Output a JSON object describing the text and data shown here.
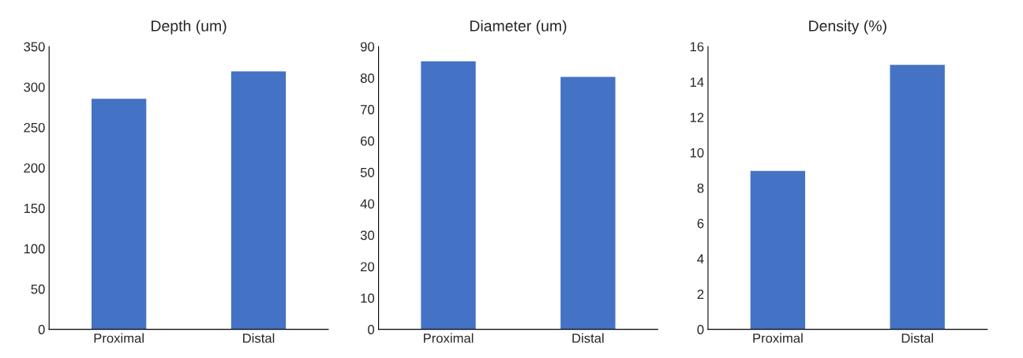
{
  "chart_data": [
    {
      "type": "bar",
      "title": "Depth (um)",
      "categories": [
        "Proximal",
        "Distal"
      ],
      "values": [
        286,
        320
      ],
      "color": "#4472c4",
      "ylim": [
        0,
        350
      ],
      "yticks": [
        0,
        50,
        100,
        150,
        200,
        250,
        300,
        350
      ],
      "grid": false,
      "legend": false
    },
    {
      "type": "bar",
      "title": "Diameter (um)",
      "categories": [
        "Proximal",
        "Distal"
      ],
      "values": [
        85.5,
        80.5
      ],
      "color": "#4472c4",
      "ylim": [
        0,
        90
      ],
      "yticks": [
        0,
        10,
        20,
        30,
        40,
        50,
        60,
        70,
        80,
        90
      ],
      "grid": false,
      "legend": false
    },
    {
      "type": "bar",
      "title": "Density (%)",
      "categories": [
        "Proximal",
        "Distal"
      ],
      "values": [
        9,
        15
      ],
      "color": "#4472c4",
      "ylim": [
        0,
        16
      ],
      "yticks": [
        0,
        2,
        4,
        6,
        8,
        10,
        12,
        14,
        16
      ],
      "grid": false,
      "legend": false
    }
  ]
}
